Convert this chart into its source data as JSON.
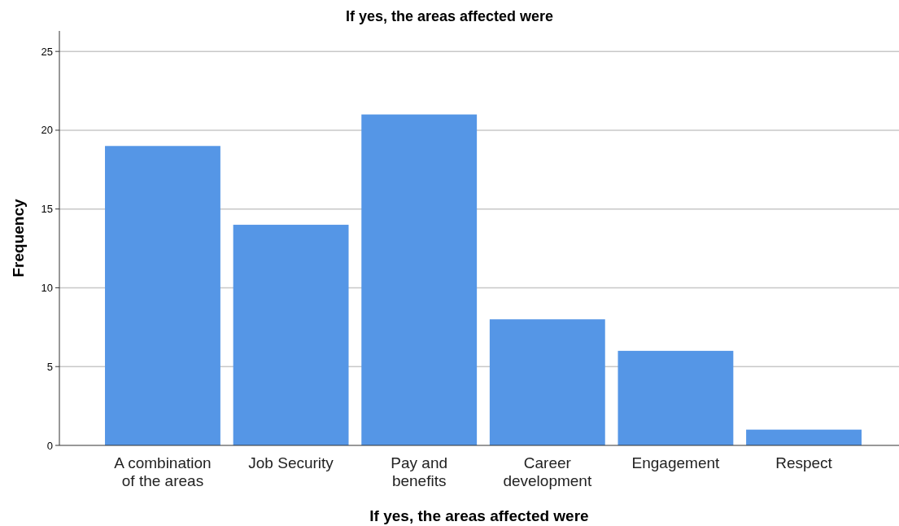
{
  "chart_data": {
    "type": "bar",
    "title": "If yes, the areas affected were",
    "xlabel": "If yes, the areas affected were",
    "ylabel": "Frequency",
    "categories": [
      "A combination of the areas",
      "Job Security",
      "Pay and benefits",
      "Career development",
      "Engagement",
      "Respect"
    ],
    "values": [
      19,
      14,
      21,
      8,
      6,
      1
    ],
    "color": "#5596e6",
    "ylim": [
      0,
      26.3
    ],
    "yticks": [
      0,
      5,
      10,
      15,
      20,
      25
    ],
    "grid": "y"
  }
}
